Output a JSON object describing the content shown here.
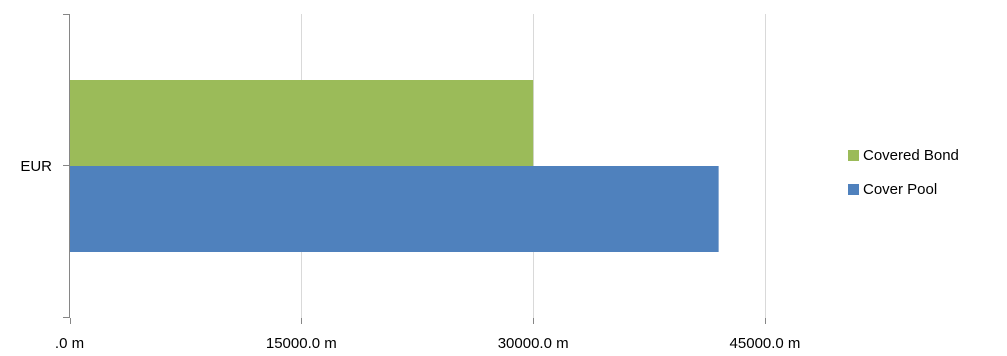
{
  "chart_data": {
    "type": "bar",
    "orientation": "horizontal",
    "categories": [
      "EUR"
    ],
    "series": [
      {
        "name": "Cover Pool",
        "values": [
          42000
        ],
        "color": "#4F81BD"
      },
      {
        "name": "Covered Bond",
        "values": [
          30000
        ],
        "color": "#9BBB59"
      }
    ],
    "xlim": [
      0,
      45000
    ],
    "xticks": [
      0,
      15000,
      30000,
      45000
    ],
    "xtick_labels": [
      ".0 m",
      "15000.0 m",
      "30000.0 m",
      "45000.0 m"
    ],
    "grid": "vertical",
    "legend": {
      "position": "right",
      "entries": [
        "Covered Bond",
        "Cover Pool"
      ]
    },
    "title": "",
    "xlabel": "",
    "ylabel": ""
  }
}
